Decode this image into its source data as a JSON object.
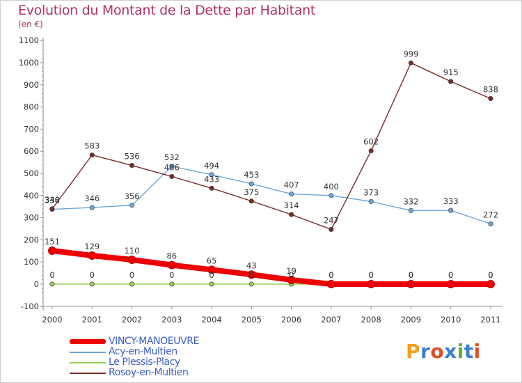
{
  "header": {
    "title": "Evolution du Montant de la Dette par Habitant",
    "unit": "(en €)"
  },
  "logo": {
    "text": "Proxiti",
    "colors": [
      "#f0a020",
      "#3a7fd0",
      "#e05020",
      "#3a7fd0",
      "#60b030",
      "#3a7fd0",
      "#e05020"
    ]
  },
  "chart_data": {
    "type": "line",
    "title": "Evolution du Montant de la Dette par Habitant",
    "ylabel": "(en €)",
    "xlabel": "",
    "x": [
      "2000",
      "2001",
      "2002",
      "2003",
      "2004",
      "2005",
      "2006",
      "2007",
      "2008",
      "2009",
      "2010",
      "2011"
    ],
    "ylim": [
      -100,
      1100
    ],
    "yticks": [
      "-100",
      "0",
      "100",
      "200",
      "300",
      "400",
      "500",
      "600",
      "700",
      "800",
      "900",
      "1000",
      "1100"
    ],
    "grid": false,
    "legend_position": "bottom-left",
    "series": [
      {
        "name": "VINCY-MANOEUVRE",
        "color": "#ee0000",
        "values": [
          151,
          129,
          110,
          86,
          65,
          43,
          19,
          0,
          0,
          0,
          0,
          0
        ],
        "labels": [
          "151",
          "129",
          "110",
          "86",
          "65",
          "43",
          "19",
          "0",
          "0",
          "0",
          "0",
          "0"
        ]
      },
      {
        "name": "Acy-en-Multien",
        "color": "#6fa4d6",
        "values": [
          338,
          346,
          356,
          532,
          494,
          453,
          407,
          400,
          373,
          332,
          333,
          272
        ],
        "labels": [
          "338",
          "346",
          "356",
          "532",
          "494",
          "453",
          "407",
          "400",
          "373",
          "332",
          "333",
          "272"
        ]
      },
      {
        "name": "Le Plessis-Placy",
        "color": "#9acd5a",
        "values": [
          0,
          0,
          0,
          0,
          0,
          0,
          0,
          0,
          0,
          0,
          0,
          0
        ],
        "labels": [
          "0",
          "0",
          "0",
          "0",
          "0",
          "0",
          "0",
          "0",
          "0",
          "0",
          "0",
          "0"
        ]
      },
      {
        "name": "Rosoy-en-Multien",
        "color": "#7b2a2a",
        "values": [
          340,
          583,
          536,
          486,
          433,
          375,
          314,
          247,
          602,
          999,
          915,
          838
        ],
        "labels": [
          "340",
          "583",
          "536",
          "486",
          "433",
          "375",
          "314",
          "247",
          "602",
          "999",
          "915",
          "838"
        ]
      }
    ]
  }
}
